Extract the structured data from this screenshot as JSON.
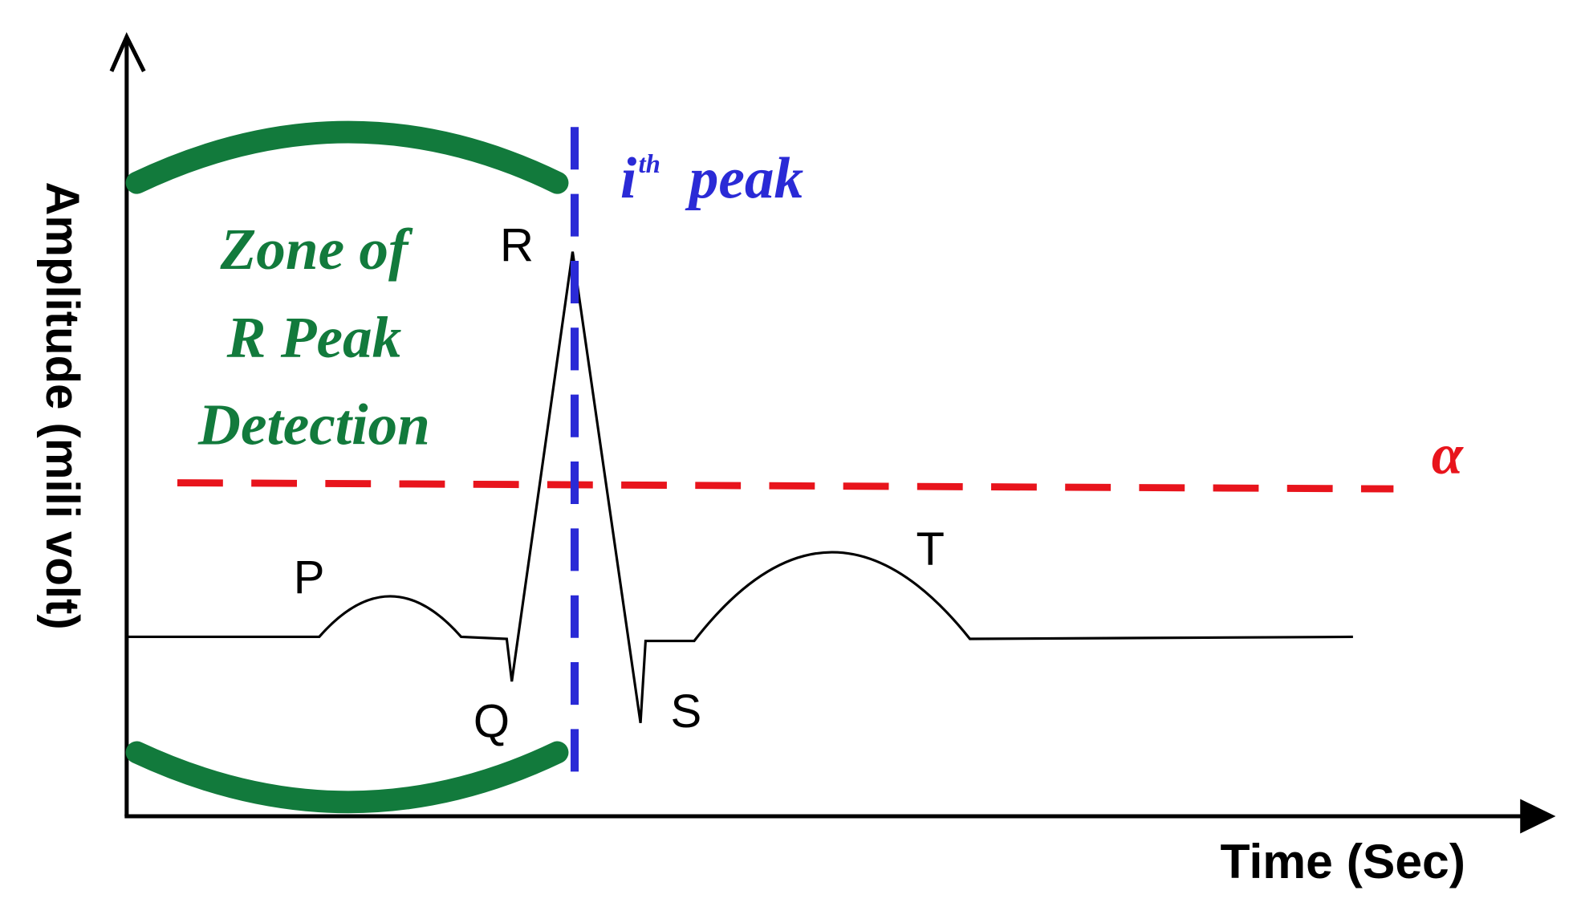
{
  "axes": {
    "y_label": "Amplitude (mili volt)",
    "x_label": "Time (Sec)"
  },
  "waves": {
    "p": "P",
    "q": "Q",
    "r": "R",
    "s": "S",
    "t": "T"
  },
  "zone": {
    "lines": [
      "Zone of",
      "R Peak",
      "Detection"
    ]
  },
  "peak": {
    "index": "i",
    "suffix": "th",
    "label": "peak"
  },
  "threshold": {
    "label": "α"
  }
}
